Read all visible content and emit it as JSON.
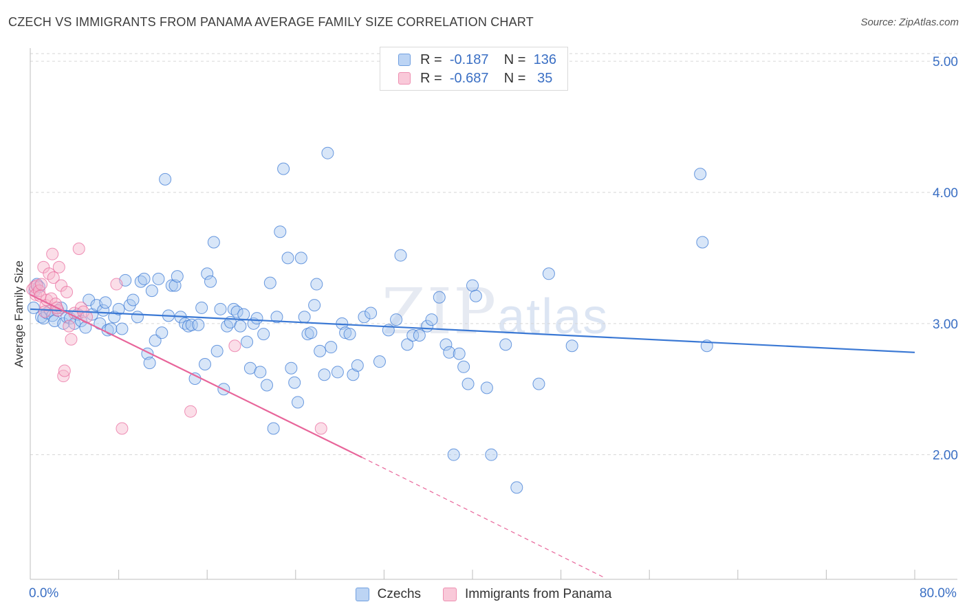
{
  "title": "CZECH VS IMMIGRANTS FROM PANAMA AVERAGE FAMILY SIZE CORRELATION CHART",
  "source": "Source: ZipAtlas.com",
  "watermark": {
    "main": "ZIP",
    "sub": "atlas"
  },
  "colors": {
    "blue": "#3a78d4",
    "blue_fill": "#a9c7ef",
    "pink": "#e8659a",
    "pink_fill": "#f6b6cc",
    "grid": "#d6d6d6",
    "axis_text": "#3a6fc4"
  },
  "legend": {
    "rows": [
      {
        "r_label": "R =",
        "r_value": "-0.187",
        "n_label": "N =",
        "n_value": "136"
      },
      {
        "r_label": "R =",
        "r_value": "-0.687",
        "n_label": "N =",
        "n_value": " 35"
      }
    ]
  },
  "bottom_legend": [
    "Czechs",
    "Immigrants from Panama"
  ],
  "chart_data": {
    "type": "scatter",
    "xlabel": "",
    "ylabel": "Average Family Size",
    "xlim": [
      0,
      80
    ],
    "ylim": [
      1.05,
      5.1
    ],
    "x_tick_labels": [
      "0.0%",
      "80.0%"
    ],
    "y_ticks": [
      2.0,
      3.0,
      4.0,
      5.0
    ],
    "y_tick_labels": [
      "2.00",
      "3.00",
      "4.00",
      "5.00"
    ],
    "grid": true,
    "series": [
      {
        "name": "Czechs",
        "r": -0.187,
        "n": 136,
        "trend": {
          "x0": 0,
          "y0": 3.11,
          "x1": 80,
          "y1": 2.78
        },
        "points": [
          [
            0.3,
            3.12
          ],
          [
            0.4,
            3.25
          ],
          [
            0.6,
            3.3
          ],
          [
            0.8,
            3.28
          ],
          [
            1.0,
            3.05
          ],
          [
            1.2,
            3.04
          ],
          [
            1.5,
            3.08
          ],
          [
            1.8,
            3.1
          ],
          [
            2.0,
            3.06
          ],
          [
            2.2,
            3.02
          ],
          [
            2.5,
            3.1
          ],
          [
            2.8,
            3.12
          ],
          [
            3.0,
            3.0
          ],
          [
            3.3,
            3.05
          ],
          [
            3.6,
            3.04
          ],
          [
            4.0,
            3.0
          ],
          [
            4.3,
            3.07
          ],
          [
            4.6,
            3.02
          ],
          [
            5.0,
            2.97
          ],
          [
            5.3,
            3.18
          ],
          [
            5.6,
            3.07
          ],
          [
            6.0,
            3.14
          ],
          [
            6.3,
            3.0
          ],
          [
            6.6,
            3.1
          ],
          [
            6.8,
            3.16
          ],
          [
            7.0,
            2.95
          ],
          [
            7.3,
            2.96
          ],
          [
            7.6,
            3.05
          ],
          [
            8.0,
            3.11
          ],
          [
            8.3,
            2.96
          ],
          [
            8.6,
            3.33
          ],
          [
            9.0,
            3.14
          ],
          [
            9.3,
            3.18
          ],
          [
            9.7,
            3.05
          ],
          [
            10.0,
            3.32
          ],
          [
            10.3,
            3.34
          ],
          [
            10.6,
            2.77
          ],
          [
            10.8,
            2.7
          ],
          [
            11.0,
            3.25
          ],
          [
            11.3,
            2.87
          ],
          [
            11.6,
            3.34
          ],
          [
            11.9,
            2.93
          ],
          [
            12.2,
            4.1
          ],
          [
            12.5,
            3.06
          ],
          [
            12.8,
            3.29
          ],
          [
            13.1,
            3.29
          ],
          [
            13.3,
            3.36
          ],
          [
            13.6,
            3.05
          ],
          [
            14.0,
            3.0
          ],
          [
            14.3,
            2.98
          ],
          [
            14.6,
            2.99
          ],
          [
            14.9,
            2.58
          ],
          [
            15.2,
            2.99
          ],
          [
            15.5,
            3.12
          ],
          [
            15.8,
            2.69
          ],
          [
            16.0,
            3.38
          ],
          [
            16.3,
            3.32
          ],
          [
            16.6,
            3.62
          ],
          [
            16.9,
            2.79
          ],
          [
            17.2,
            3.11
          ],
          [
            17.5,
            2.5
          ],
          [
            17.8,
            2.98
          ],
          [
            18.1,
            3.01
          ],
          [
            18.4,
            3.11
          ],
          [
            18.7,
            3.09
          ],
          [
            19.0,
            2.98
          ],
          [
            19.3,
            3.07
          ],
          [
            19.6,
            2.86
          ],
          [
            19.9,
            2.66
          ],
          [
            20.2,
            3.0
          ],
          [
            20.5,
            3.04
          ],
          [
            20.8,
            2.63
          ],
          [
            21.1,
            2.92
          ],
          [
            21.4,
            2.53
          ],
          [
            21.7,
            3.31
          ],
          [
            22.0,
            2.2
          ],
          [
            22.3,
            3.05
          ],
          [
            22.6,
            3.7
          ],
          [
            22.9,
            4.18
          ],
          [
            23.3,
            3.5
          ],
          [
            23.6,
            2.66
          ],
          [
            23.9,
            2.55
          ],
          [
            24.2,
            2.4
          ],
          [
            24.5,
            3.5
          ],
          [
            24.8,
            3.05
          ],
          [
            25.1,
            2.92
          ],
          [
            25.4,
            2.93
          ],
          [
            25.7,
            3.14
          ],
          [
            25.9,
            3.3
          ],
          [
            26.2,
            2.79
          ],
          [
            26.6,
            2.61
          ],
          [
            26.9,
            4.3
          ],
          [
            27.2,
            2.82
          ],
          [
            27.8,
            2.63
          ],
          [
            28.2,
            3.0
          ],
          [
            28.5,
            2.93
          ],
          [
            28.9,
            2.92
          ],
          [
            29.2,
            2.61
          ],
          [
            29.6,
            2.68
          ],
          [
            30.2,
            3.05
          ],
          [
            30.8,
            3.08
          ],
          [
            31.6,
            2.71
          ],
          [
            32.4,
            2.95
          ],
          [
            33.1,
            3.03
          ],
          [
            33.5,
            3.52
          ],
          [
            34.1,
            2.84
          ],
          [
            34.6,
            2.91
          ],
          [
            35.2,
            2.91
          ],
          [
            35.9,
            2.98
          ],
          [
            36.3,
            3.03
          ],
          [
            37.0,
            3.2
          ],
          [
            37.6,
            2.84
          ],
          [
            37.9,
            2.78
          ],
          [
            38.3,
            2.0
          ],
          [
            38.8,
            2.77
          ],
          [
            39.2,
            2.67
          ],
          [
            39.6,
            2.54
          ],
          [
            40.0,
            3.29
          ],
          [
            40.3,
            3.21
          ],
          [
            41.3,
            2.51
          ],
          [
            41.7,
            2.0
          ],
          [
            43.0,
            2.84
          ],
          [
            44.0,
            1.75
          ],
          [
            46.0,
            2.54
          ],
          [
            46.9,
            3.38
          ],
          [
            49.0,
            2.83
          ],
          [
            60.6,
            4.14
          ],
          [
            60.8,
            3.62
          ],
          [
            61.2,
            2.83
          ]
        ]
      },
      {
        "name": "Immigrants from Panama",
        "r": -0.687,
        "n": 35,
        "trend": {
          "x0": 0,
          "y0": 3.22,
          "x1": 30,
          "y1": 1.98
        },
        "trend_dashed": {
          "x0": 30,
          "y0": 1.98,
          "x1": 52,
          "y1": 1.06
        },
        "points": [
          [
            0.2,
            3.26
          ],
          [
            0.4,
            3.28
          ],
          [
            0.5,
            3.22
          ],
          [
            0.6,
            3.29
          ],
          [
            0.8,
            3.25
          ],
          [
            1.0,
            3.3
          ],
          [
            1.2,
            3.43
          ],
          [
            1.4,
            3.14
          ],
          [
            1.5,
            3.18
          ],
          [
            1.7,
            3.38
          ],
          [
            1.9,
            3.19
          ],
          [
            2.0,
            3.53
          ],
          [
            2.1,
            3.35
          ],
          [
            2.3,
            3.15
          ],
          [
            2.5,
            3.1
          ],
          [
            2.6,
            3.43
          ],
          [
            2.8,
            3.29
          ],
          [
            3.0,
            2.6
          ],
          [
            3.1,
            2.64
          ],
          [
            3.3,
            3.24
          ],
          [
            3.5,
            2.98
          ],
          [
            3.7,
            2.88
          ],
          [
            4.0,
            3.08
          ],
          [
            4.4,
            3.57
          ],
          [
            4.6,
            3.12
          ],
          [
            4.8,
            3.09
          ],
          [
            5.1,
            3.05
          ],
          [
            7.8,
            3.3
          ],
          [
            8.3,
            2.2
          ],
          [
            14.5,
            2.33
          ],
          [
            18.5,
            2.83
          ],
          [
            26.3,
            2.2
          ],
          [
            0.9,
            3.21
          ],
          [
            1.3,
            3.09
          ],
          [
            2.4,
            3.12
          ]
        ]
      }
    ]
  }
}
